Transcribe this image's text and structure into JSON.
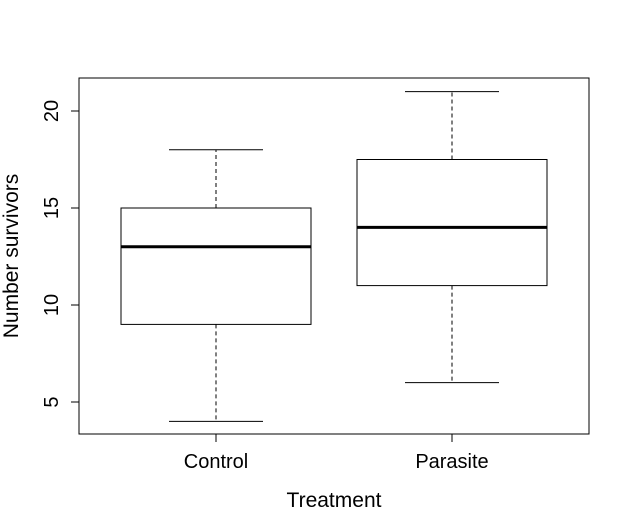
{
  "chart_data": {
    "type": "boxplot",
    "title": "",
    "xlabel": "Treatment",
    "ylabel": "Number survivors",
    "ylim": [
      3.4,
      21.8
    ],
    "yticks": [
      5,
      10,
      15,
      20
    ],
    "ytick_labels": [
      "5",
      "10",
      "15",
      "20"
    ],
    "categories": [
      "Control",
      "Parasite"
    ],
    "boxes": [
      {
        "category": "Control",
        "whisker_low": 4,
        "q1": 9,
        "median": 13,
        "q3": 15,
        "whisker_high": 18
      },
      {
        "category": "Parasite",
        "whisker_low": 6,
        "q1": 11,
        "median": 14,
        "q3": 17.5,
        "whisker_high": 21
      }
    ],
    "grid": false,
    "legend": "none"
  }
}
